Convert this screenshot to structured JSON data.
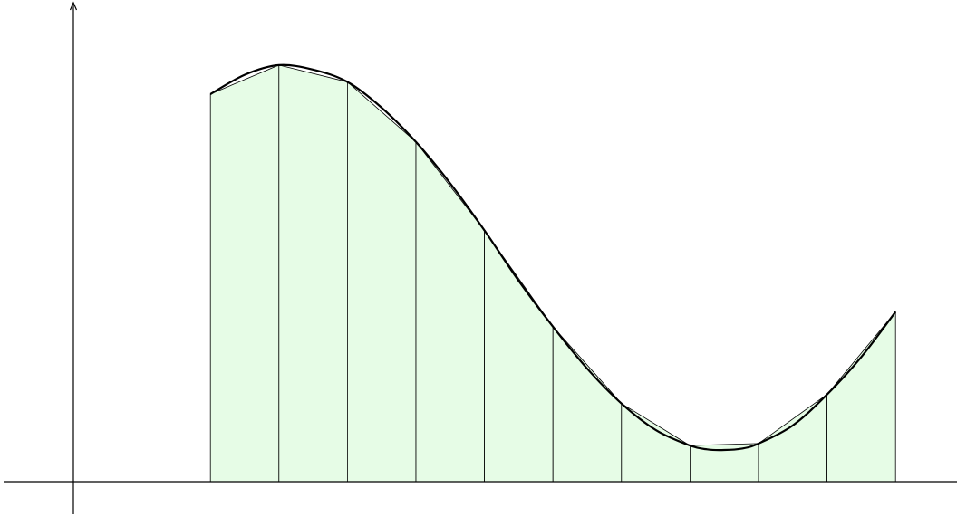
{
  "diagram": {
    "type": "trapezoidal-rule-illustration",
    "interval": [
      2,
      12
    ],
    "subintervals": 10,
    "sample_x": [
      2,
      3,
      4,
      5,
      6,
      7,
      8,
      9,
      10,
      11,
      12
    ],
    "sample_y": [
      6.0,
      6.45,
      6.19,
      5.26,
      3.89,
      2.4,
      1.21,
      0.56,
      0.59,
      1.35,
      2.63
    ],
    "curve_points": [
      [
        2,
        6.0
      ],
      [
        2.5,
        6.3
      ],
      [
        3,
        6.45
      ],
      [
        3.5,
        6.38
      ],
      [
        4,
        6.19
      ],
      [
        4.5,
        5.79
      ],
      [
        5,
        5.26
      ],
      [
        5.5,
        4.62
      ],
      [
        6,
        3.89
      ],
      [
        6.5,
        3.11
      ],
      [
        7,
        2.4
      ],
      [
        7.5,
        1.75
      ],
      [
        8,
        1.21
      ],
      [
        8.5,
        0.8
      ],
      [
        9,
        0.56
      ],
      [
        9.25,
        0.5
      ],
      [
        9.5,
        0.49
      ],
      [
        9.75,
        0.51
      ],
      [
        10,
        0.59
      ],
      [
        10.5,
        0.87
      ],
      [
        11,
        1.35
      ],
      [
        11.5,
        1.93
      ],
      [
        12,
        2.63
      ]
    ],
    "colors": {
      "fill": "#e6fce6",
      "stroke": "#000000",
      "curve": "#000000"
    }
  }
}
